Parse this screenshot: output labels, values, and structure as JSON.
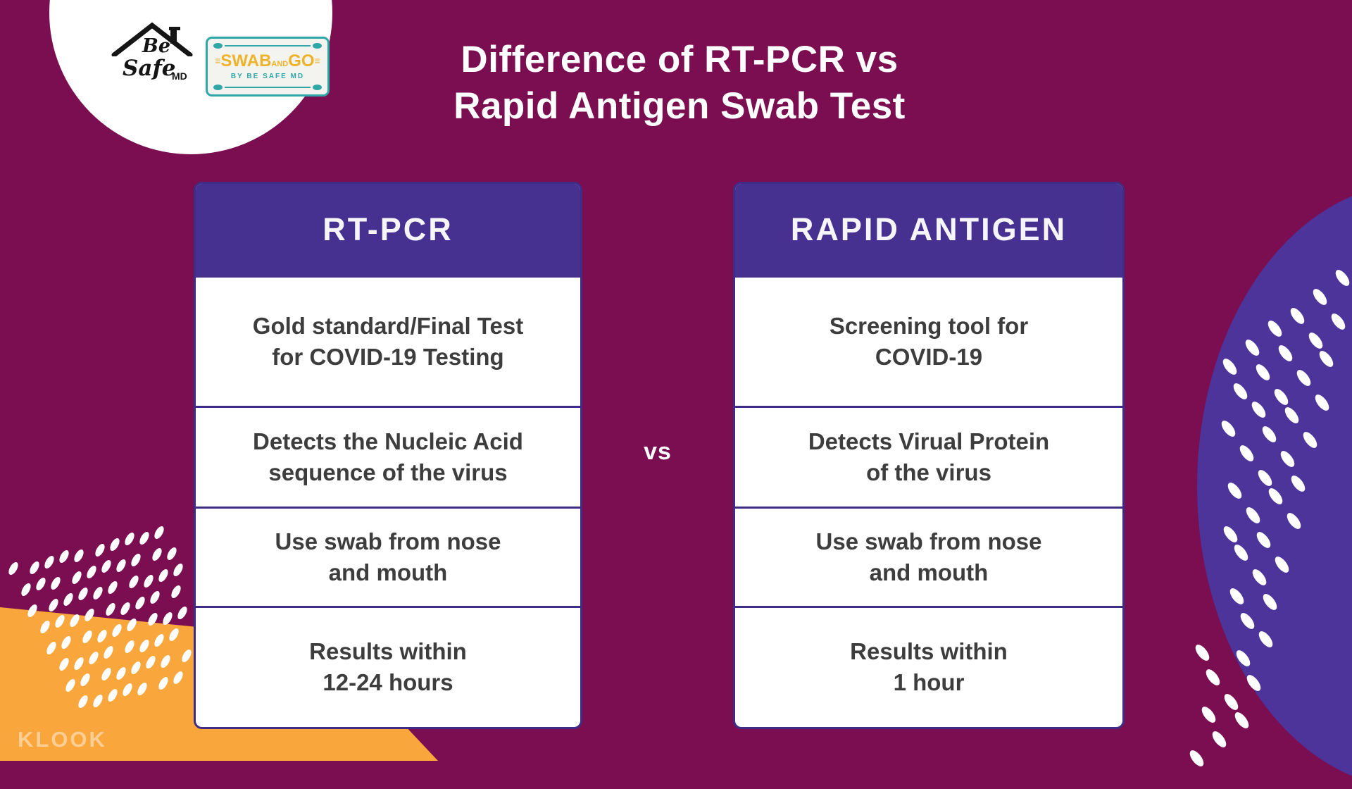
{
  "title": {
    "line1": "Difference of RT-PCR vs",
    "line2": "Rapid Antigen Swab Test"
  },
  "vs_label": "vs",
  "logo": {
    "script_word1": "Be",
    "script_word2": "Safe",
    "script_suffix": "MD",
    "plate_title_main1": "SWAB",
    "plate_title_and": "AND",
    "plate_title_main2": "GO",
    "plate_flank": "≡",
    "plate_subtitle": "BY BE SAFE MD"
  },
  "tables": [
    {
      "header": "RT-PCR",
      "rows": [
        {
          "line1": "Gold standard/Final Test",
          "line2": "for COVID-19 Testing"
        },
        {
          "line1": "Detects the Nucleic Acid",
          "line2": "sequence of the virus"
        },
        {
          "line1": "Use swab from nose",
          "line2": "and mouth"
        },
        {
          "line1": "Results within",
          "line2": "12-24 hours"
        }
      ]
    },
    {
      "header": "RAPID ANTIGEN",
      "rows": [
        {
          "line1": "Screening tool for",
          "line2": "COVID-19"
        },
        {
          "line1": "Detects Virual Protein",
          "line2": "of the virus"
        },
        {
          "line1": "Use swab from nose",
          "line2": "and mouth"
        },
        {
          "line1": "Results within",
          "line2": "1 hour"
        }
      ]
    }
  ],
  "watermark": "KLOOK",
  "colors": {
    "background_magenta": "#7B0E51",
    "header_purple": "#463090",
    "border_purple": "#3F2C87",
    "blob_purple": "#4C349A",
    "accent_orange": "#F9A63C",
    "plate_teal": "#2EA7A6",
    "plate_gold": "#EFB32B",
    "row_text": "#3D3D3D"
  }
}
